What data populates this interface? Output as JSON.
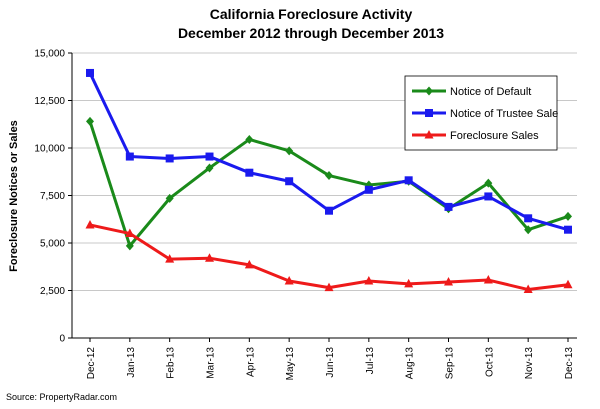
{
  "chart_data": {
    "type": "line",
    "title": "California Foreclosure Activity",
    "subtitle": "December 2012 through December 2013",
    "ylabel": "Foreclosure Notices or Sales",
    "xlabel": "",
    "source": "Source: PropertyRadar.com",
    "ylim": [
      0,
      15000
    ],
    "yticks": [
      0,
      2500,
      5000,
      7500,
      10000,
      12500,
      15000
    ],
    "ytick_labels": [
      "0",
      "2,500",
      "5,000",
      "7,500",
      "10,000",
      "12,500",
      "15,000"
    ],
    "grid": "horizontal",
    "legend_position": "top-right",
    "categories": [
      "Dec-12",
      "Jan-13",
      "Feb-13",
      "Mar-13",
      "Apr-13",
      "May-13",
      "Jun-13",
      "Jul-13",
      "Aug-13",
      "Sep-13",
      "Oct-13",
      "Nov-13",
      "Dec-13"
    ],
    "series": [
      {
        "name": "Notice of Default",
        "color": "#1a8a1a",
        "marker": "diamond",
        "values": [
          11400,
          4850,
          7350,
          8950,
          10450,
          9850,
          8550,
          8050,
          8250,
          6800,
          8150,
          5700,
          6400
        ]
      },
      {
        "name": "Notice of Trustee Sale",
        "color": "#1a1aee",
        "marker": "square",
        "values": [
          13950,
          9550,
          9450,
          9550,
          8700,
          8250,
          6700,
          7800,
          8300,
          6900,
          7450,
          6300,
          5700
        ]
      },
      {
        "name": "Foreclosure Sales",
        "color": "#ee1a1a",
        "marker": "triangle",
        "values": [
          5950,
          5500,
          4150,
          4200,
          3850,
          3000,
          2650,
          3000,
          2850,
          2950,
          3050,
          2550,
          2800
        ]
      }
    ]
  }
}
